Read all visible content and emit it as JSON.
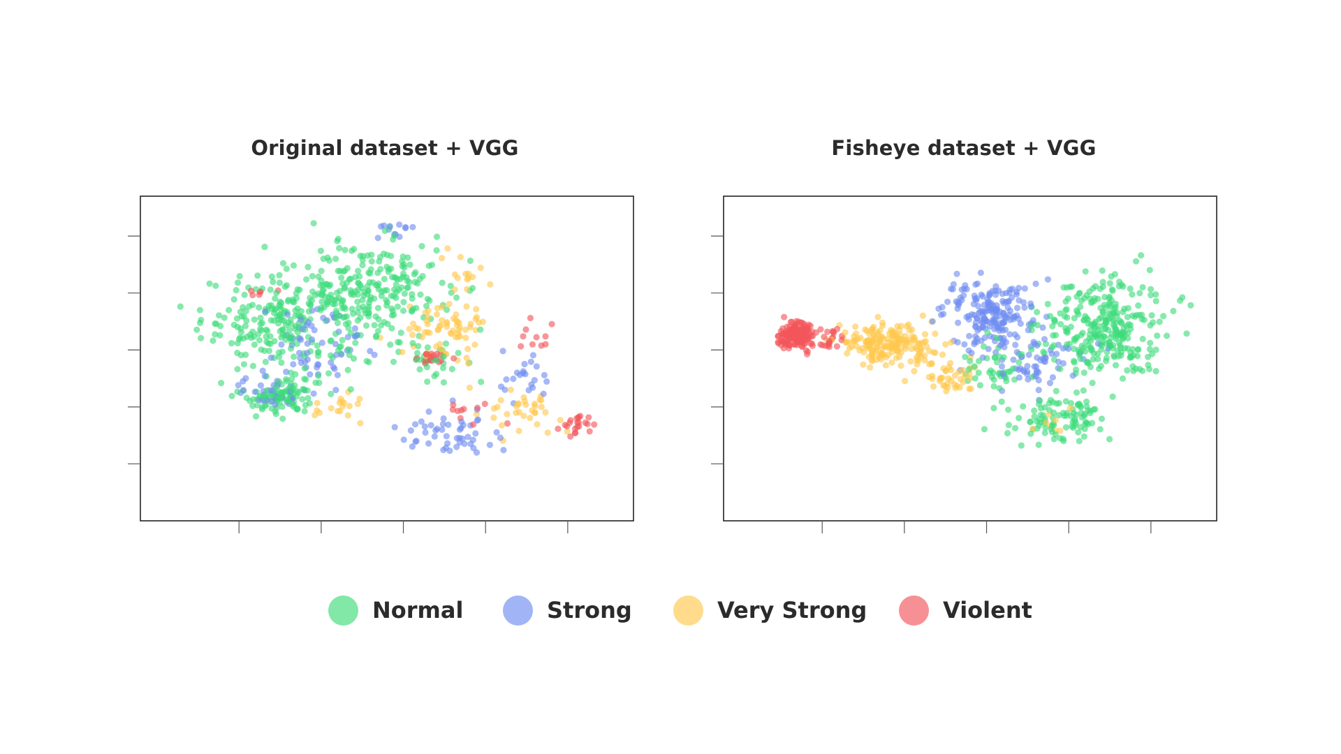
{
  "chart_data": [
    {
      "type": "scatter",
      "title": "Original dataset + VGG",
      "xlabel": "",
      "ylabel": "",
      "xlim": [
        -1.2,
        4.8
      ],
      "ylim": [
        -0.5,
        5.2
      ],
      "x_ticks": [
        0,
        1,
        2,
        3,
        4
      ],
      "y_ticks": [
        0.5,
        1.5,
        2.5,
        3.5,
        4.5
      ],
      "tick_labels_shown": false,
      "grid": false,
      "series": [
        {
          "name": "Normal",
          "color": "#3ddc7a",
          "clusters": [
            {
              "x": 0.6,
              "y": 3.0,
              "sx": 0.95,
              "sy": 0.8,
              "n": 260
            },
            {
              "x": 1.7,
              "y": 3.6,
              "sx": 0.75,
              "sy": 0.75,
              "n": 200
            },
            {
              "x": 0.5,
              "y": 1.7,
              "sx": 0.45,
              "sy": 0.3,
              "n": 90
            },
            {
              "x": 2.3,
              "y": 2.4,
              "sx": 0.4,
              "sy": 0.4,
              "n": 30
            }
          ],
          "sample_points": [
            [
              0.6,
              3.0
            ],
            [
              1.6,
              4.3
            ],
            [
              -0.2,
              2.5
            ],
            [
              0.8,
              1.7
            ],
            [
              2.1,
              3.4
            ]
          ]
        },
        {
          "name": "Strong",
          "color": "#6f8cf0",
          "clusters": [
            {
              "x": 0.4,
              "y": 1.75,
              "sx": 0.35,
              "sy": 0.25,
              "n": 40
            },
            {
              "x": 1.0,
              "y": 2.6,
              "sx": 0.7,
              "sy": 0.7,
              "n": 60
            },
            {
              "x": 2.6,
              "y": 1.0,
              "sx": 0.6,
              "sy": 0.35,
              "n": 50
            },
            {
              "x": 3.5,
              "y": 2.0,
              "sx": 0.3,
              "sy": 0.4,
              "n": 22
            },
            {
              "x": 1.9,
              "y": 4.6,
              "sx": 0.25,
              "sy": 0.25,
              "n": 12
            }
          ],
          "sample_points": [
            [
              0.3,
              1.7
            ],
            [
              2.5,
              1.0
            ],
            [
              3.6,
              2.1
            ],
            [
              1.0,
              2.7
            ]
          ]
        },
        {
          "name": "Very Strong",
          "color": "#ffc84d",
          "clusters": [
            {
              "x": 2.5,
              "y": 2.8,
              "sx": 0.45,
              "sy": 0.5,
              "n": 70
            },
            {
              "x": 3.5,
              "y": 1.4,
              "sx": 0.4,
              "sy": 0.3,
              "n": 35
            },
            {
              "x": 1.2,
              "y": 1.5,
              "sx": 0.3,
              "sy": 0.3,
              "n": 18
            },
            {
              "x": 2.8,
              "y": 3.8,
              "sx": 0.3,
              "sy": 0.3,
              "n": 14
            }
          ],
          "sample_points": [
            [
              2.6,
              2.8
            ],
            [
              3.8,
              1.3
            ],
            [
              1.2,
              1.6
            ]
          ]
        },
        {
          "name": "Violent",
          "color": "#f2555a",
          "clusters": [
            {
              "x": 2.35,
              "y": 2.35,
              "sx": 0.18,
              "sy": 0.1,
              "n": 22
            },
            {
              "x": 4.1,
              "y": 1.2,
              "sx": 0.28,
              "sy": 0.18,
              "n": 22
            },
            {
              "x": 3.6,
              "y": 2.6,
              "sx": 0.25,
              "sy": 0.35,
              "n": 10
            },
            {
              "x": 0.3,
              "y": 3.5,
              "sx": 0.2,
              "sy": 0.1,
              "n": 6
            },
            {
              "x": 2.8,
              "y": 1.4,
              "sx": 0.25,
              "sy": 0.2,
              "n": 10
            }
          ],
          "sample_points": [
            [
              2.35,
              2.35
            ],
            [
              4.2,
              1.2
            ],
            [
              3.6,
              2.6
            ]
          ]
        }
      ]
    },
    {
      "type": "scatter",
      "title": "Fisheye dataset + VGG",
      "xlabel": "",
      "ylabel": "",
      "xlim": [
        -1.2,
        4.8
      ],
      "ylim": [
        -0.5,
        5.2
      ],
      "x_ticks": [
        0,
        1,
        2,
        3,
        4
      ],
      "y_ticks": [
        0.5,
        1.5,
        2.5,
        3.5,
        4.5
      ],
      "tick_labels_shown": false,
      "grid": false,
      "series": [
        {
          "name": "Normal",
          "color": "#3ddc7a",
          "clusters": [
            {
              "x": 3.4,
              "y": 2.9,
              "sx": 0.7,
              "sy": 0.85,
              "n": 300
            },
            {
              "x": 2.9,
              "y": 1.3,
              "sx": 0.55,
              "sy": 0.35,
              "n": 100
            },
            {
              "x": 2.1,
              "y": 2.2,
              "sx": 0.35,
              "sy": 0.35,
              "n": 40
            }
          ],
          "sample_points": [
            [
              3.4,
              3.0
            ],
            [
              4.4,
              2.5
            ],
            [
              3.0,
              1.1
            ],
            [
              3.6,
              4.2
            ]
          ]
        },
        {
          "name": "Strong",
          "color": "#6f8cf0",
          "clusters": [
            {
              "x": 2.0,
              "y": 3.1,
              "sx": 0.5,
              "sy": 0.55,
              "n": 190
            },
            {
              "x": 2.6,
              "y": 2.3,
              "sx": 0.55,
              "sy": 0.45,
              "n": 60
            }
          ],
          "sample_points": [
            [
              1.9,
              3.3
            ],
            [
              2.6,
              2.4
            ],
            [
              1.4,
              2.9
            ]
          ]
        },
        {
          "name": "Very Strong",
          "color": "#ffc84d",
          "clusters": [
            {
              "x": 0.8,
              "y": 2.6,
              "sx": 0.55,
              "sy": 0.32,
              "n": 190
            },
            {
              "x": 1.55,
              "y": 2.0,
              "sx": 0.3,
              "sy": 0.3,
              "n": 40
            },
            {
              "x": 2.8,
              "y": 1.2,
              "sx": 0.2,
              "sy": 0.2,
              "n": 8
            }
          ],
          "sample_points": [
            [
              0.8,
              2.6
            ],
            [
              0.2,
              2.7
            ],
            [
              1.4,
              2.5
            ]
          ]
        },
        {
          "name": "Violent",
          "color": "#f2555a",
          "clusters": [
            {
              "x": -0.3,
              "y": 2.75,
              "sx": 0.22,
              "sy": 0.22,
              "n": 150
            },
            {
              "x": 0.1,
              "y": 2.7,
              "sx": 0.18,
              "sy": 0.2,
              "n": 20
            }
          ],
          "sample_points": [
            [
              -0.3,
              2.75
            ],
            [
              -0.55,
              2.7
            ],
            [
              0.1,
              2.6
            ]
          ]
        }
      ]
    }
  ],
  "legend": [
    {
      "label": "Normal",
      "color": "#3ddc7a"
    },
    {
      "label": "Strong",
      "color": "#6f8cf0"
    },
    {
      "label": "Very Strong",
      "color": "#ffc84d"
    },
    {
      "label": "Violent",
      "color": "#f2555a"
    }
  ]
}
